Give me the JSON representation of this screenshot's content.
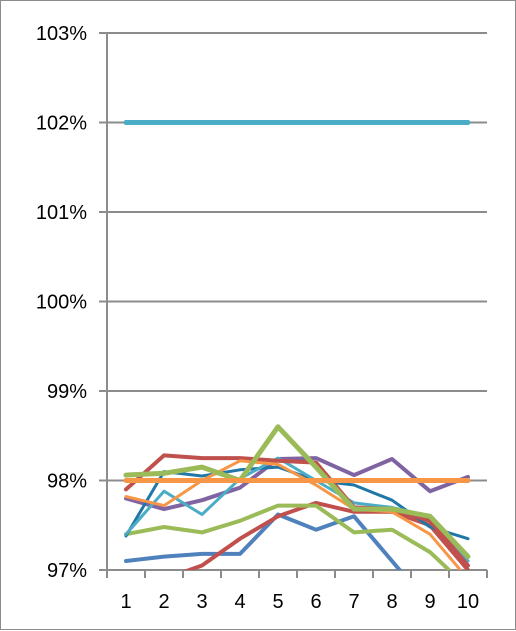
{
  "chart_data": {
    "type": "line",
    "title": "",
    "xlabel": "",
    "ylabel": "",
    "x": [
      1,
      2,
      3,
      4,
      5,
      6,
      7,
      8,
      9,
      10
    ],
    "x_tick_labels": [
      "1",
      "2",
      "3",
      "4",
      "5",
      "6",
      "7",
      "8",
      "9",
      "10"
    ],
    "ylim": [
      0.97,
      1.03
    ],
    "y_ticks": [
      0.97,
      0.98,
      0.99,
      1.0,
      1.01,
      1.02,
      1.03
    ],
    "y_tick_labels": [
      "97%",
      "98%",
      "99%",
      "100%",
      "101%",
      "102%",
      "103%"
    ],
    "grid": "horizontal",
    "legend": "none",
    "series": [
      {
        "color": "#4bacc6",
        "width": 5,
        "values": [
          1.02,
          1.02,
          1.02,
          1.02,
          1.02,
          1.02,
          1.02,
          1.02,
          1.02,
          1.02
        ]
      },
      {
        "color": "#f79646",
        "width": 5,
        "values": [
          0.98,
          0.98,
          0.98,
          0.98,
          0.98,
          0.98,
          0.98,
          0.98,
          0.98,
          0.98
        ]
      },
      {
        "color": "#4f81bd",
        "width": 4,
        "values": [
          0.971,
          0.9715,
          0.9718,
          0.9718,
          0.9762,
          0.9745,
          0.976,
          0.971,
          0.966,
          0.964
        ]
      },
      {
        "color": "#c0504d",
        "width": 4,
        "values": [
          0.966,
          0.969,
          0.9705,
          0.9735,
          0.976,
          0.9775,
          0.9765,
          0.9765,
          0.975,
          0.97
        ]
      },
      {
        "color": "#9bbb59",
        "width": 4,
        "values": [
          0.974,
          0.9748,
          0.9742,
          0.9755,
          0.9772,
          0.9772,
          0.9742,
          0.9745,
          0.972,
          0.968
        ]
      },
      {
        "color": "#8064a2",
        "width": 4,
        "values": [
          0.978,
          0.9768,
          0.9778,
          0.9792,
          0.9824,
          0.9825,
          0.9806,
          0.9824,
          0.9788,
          0.9804
        ]
      },
      {
        "color": "#1f77a8",
        "width": 3,
        "values": [
          0.9738,
          0.981,
          0.9805,
          0.9812,
          0.9815,
          0.98,
          0.9795,
          0.9778,
          0.9748,
          0.9735
        ]
      },
      {
        "color": "#4bacc6",
        "width": 3,
        "values": [
          0.974,
          0.9788,
          0.9762,
          0.9802,
          0.9825,
          0.98,
          0.9775,
          0.977,
          0.976,
          0.971
        ]
      },
      {
        "color": "#c0504d",
        "width": 4,
        "values": [
          0.979,
          0.9828,
          0.9825,
          0.9825,
          0.9822,
          0.982,
          0.977,
          0.9768,
          0.9755,
          0.9705
        ]
      },
      {
        "color": "#f79646",
        "width": 3,
        "values": [
          0.9782,
          0.9772,
          0.98,
          0.9822,
          0.9818,
          0.9795,
          0.9768,
          0.9765,
          0.974,
          0.969
        ]
      },
      {
        "color": "#9bbb59",
        "width": 5,
        "values": [
          0.9806,
          0.9808,
          0.9815,
          0.98,
          0.986,
          0.9815,
          0.9768,
          0.9768,
          0.976,
          0.9715
        ]
      }
    ]
  }
}
